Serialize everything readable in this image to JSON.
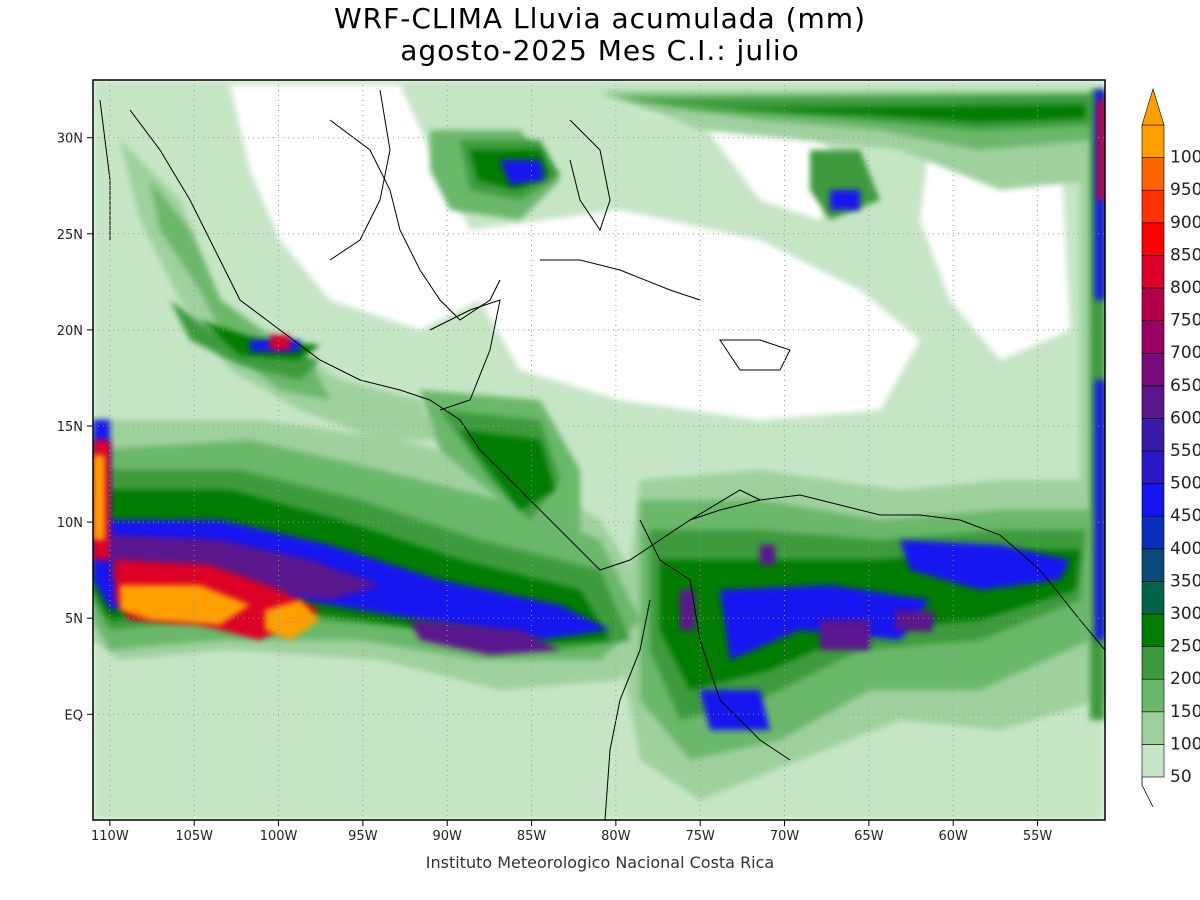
{
  "title": {
    "line1": "WRF-CLIMA Lluvia acumulada (mm)",
    "line2": "agosto-2025 Mes C.I.: julio"
  },
  "credit": "Instituto Meteorologico Nacional Costa Rica",
  "map": {
    "lon_range": [
      -111,
      -51
    ],
    "lat_range": [
      -5.5,
      33
    ],
    "x_ticks": [
      {
        "lon": -110,
        "label": "110W"
      },
      {
        "lon": -105,
        "label": "105W"
      },
      {
        "lon": -100,
        "label": "100W"
      },
      {
        "lon": -95,
        "label": "95W"
      },
      {
        "lon": -90,
        "label": "90W"
      },
      {
        "lon": -85,
        "label": "85W"
      },
      {
        "lon": -80,
        "label": "80W"
      },
      {
        "lon": -75,
        "label": "75W"
      },
      {
        "lon": -70,
        "label": "70W"
      },
      {
        "lon": -65,
        "label": "65W"
      },
      {
        "lon": -60,
        "label": "60W"
      },
      {
        "lon": -55,
        "label": "55W"
      }
    ],
    "y_ticks": [
      {
        "lat": 30,
        "label": "30N"
      },
      {
        "lat": 25,
        "label": "25N"
      },
      {
        "lat": 20,
        "label": "20N"
      },
      {
        "lat": 15,
        "label": "15N"
      },
      {
        "lat": 10,
        "label": "10N"
      },
      {
        "lat": 5,
        "label": "5N"
      },
      {
        "lat": 0,
        "label": "EQ"
      }
    ],
    "grid": "dotted"
  },
  "legend": {
    "title": "Lluvia acumulada (mm)",
    "levels": [
      {
        "label": "50",
        "color": "#c6e6c6"
      },
      {
        "label": "100",
        "color": "#9fd19f"
      },
      {
        "label": "150",
        "color": "#6bb86b"
      },
      {
        "label": "200",
        "color": "#3d9b3d"
      },
      {
        "label": "250",
        "color": "#007c00"
      },
      {
        "label": "300",
        "color": "#00644a"
      },
      {
        "label": "350",
        "color": "#0a4a7a"
      },
      {
        "label": "400",
        "color": "#0a2fbe"
      },
      {
        "label": "450",
        "color": "#1414f0"
      },
      {
        "label": "500",
        "color": "#2a18c8"
      },
      {
        "label": "550",
        "color": "#3a1aa8"
      },
      {
        "label": "600",
        "color": "#5a148c"
      },
      {
        "label": "650",
        "color": "#7a0a7a"
      },
      {
        "label": "700",
        "color": "#9a0064"
      },
      {
        "label": "750",
        "color": "#b4004a"
      },
      {
        "label": "800",
        "color": "#dc0028"
      },
      {
        "label": "850",
        "color": "#ff0000"
      },
      {
        "label": "900",
        "color": "#ff3200"
      },
      {
        "label": "950",
        "color": "#ff6400"
      },
      {
        "label": "1000",
        "color": "#ffa000"
      }
    ]
  }
}
